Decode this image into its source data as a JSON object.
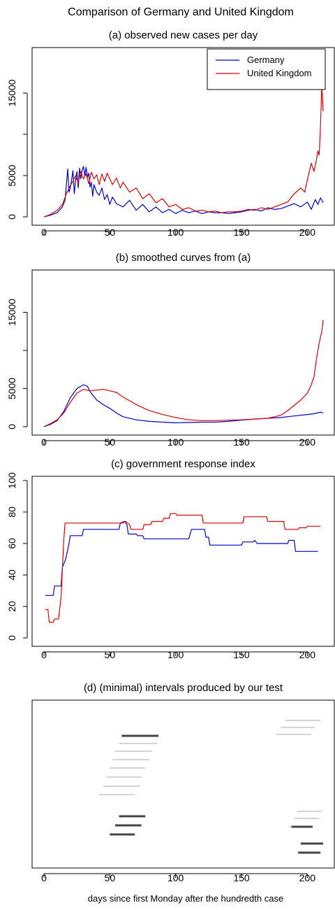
{
  "figure": {
    "title": "Comparison of Germany and United Kingdom",
    "xlabel": "days since first Monday after the hundredth case"
  },
  "chart_data": [
    {
      "type": "line",
      "title": "(a) observed new cases per day",
      "xlim": [
        0,
        212
      ],
      "ylim": [
        0,
        20000
      ],
      "x_ticks": [
        0,
        50,
        100,
        150,
        200
      ],
      "y_ticks": [
        0,
        5000,
        15000
      ],
      "legend": {
        "position": "top-right",
        "entries": [
          "Germany",
          "United Kingdom"
        ]
      },
      "series": [
        {
          "name": "Germany",
          "color": "#0000cc",
          "x": [
            0,
            5,
            10,
            14,
            16,
            18,
            19,
            20,
            21,
            22,
            23,
            24,
            25,
            26,
            27,
            28,
            29,
            30,
            31,
            32,
            33,
            34,
            35,
            36,
            37,
            38,
            40,
            42,
            44,
            46,
            48,
            50,
            52,
            55,
            60,
            65,
            70,
            75,
            80,
            85,
            90,
            95,
            100,
            105,
            110,
            115,
            120,
            125,
            130,
            135,
            140,
            145,
            150,
            155,
            160,
            165,
            170,
            175,
            180,
            185,
            190,
            195,
            200,
            203,
            206,
            208,
            210,
            212
          ],
          "y": [
            0,
            200,
            500,
            1200,
            2000,
            5800,
            3000,
            3500,
            4500,
            5600,
            2800,
            4400,
            5500,
            3500,
            5900,
            4600,
            5700,
            6100,
            5000,
            6000,
            4800,
            5300,
            3600,
            4200,
            2500,
            3900,
            3000,
            2600,
            3500,
            2100,
            2700,
            1500,
            2400,
            1600,
            1200,
            2000,
            800,
            1500,
            600,
            1200,
            500,
            900,
            400,
            800,
            500,
            700,
            400,
            600,
            500,
            500,
            400,
            500,
            600,
            800,
            900,
            700,
            1100,
            900,
            1000,
            1300,
            1600,
            1200,
            1800,
            900,
            2100,
            1500,
            2300,
            1700
          ]
        },
        {
          "name": "United Kingdom",
          "color": "#dd0000",
          "x": [
            0,
            5,
            10,
            14,
            17,
            20,
            22,
            24,
            26,
            28,
            30,
            32,
            34,
            36,
            38,
            40,
            42,
            44,
            46,
            48,
            50,
            52,
            55,
            58,
            60,
            65,
            70,
            75,
            80,
            85,
            90,
            95,
            100,
            105,
            110,
            115,
            120,
            125,
            130,
            135,
            140,
            145,
            150,
            155,
            160,
            165,
            170,
            175,
            180,
            185,
            190,
            195,
            198,
            200,
            203,
            205,
            207,
            208,
            209,
            210,
            211,
            212
          ],
          "y": [
            0,
            300,
            800,
            1500,
            2800,
            3800,
            4300,
            5000,
            4100,
            5500,
            4600,
            5200,
            4000,
            5400,
            4600,
            5100,
            3900,
            5200,
            4300,
            5300,
            4600,
            3900,
            4700,
            3500,
            4200,
            3000,
            3500,
            2200,
            2800,
            1700,
            2200,
            1200,
            1500,
            900,
            1100,
            700,
            800,
            600,
            700,
            500,
            600,
            600,
            700,
            900,
            800,
            1100,
            900,
            1200,
            1500,
            1800,
            2800,
            3500,
            3000,
            4500,
            6500,
            5500,
            7000,
            8000,
            7500,
            11000,
            16000,
            12800
          ]
        }
      ]
    },
    {
      "type": "line",
      "title": "(b) smoothed curves from (a)",
      "xlim": [
        0,
        212
      ],
      "ylim": [
        0,
        20000
      ],
      "x_ticks": [
        0,
        50,
        100,
        150,
        200
      ],
      "y_ticks": [
        0,
        5000,
        15000
      ],
      "series": [
        {
          "name": "Germany",
          "color": "#0000cc",
          "x": [
            0,
            5,
            10,
            15,
            20,
            25,
            30,
            33,
            35,
            40,
            45,
            50,
            55,
            60,
            70,
            80,
            90,
            100,
            110,
            120,
            130,
            140,
            150,
            160,
            170,
            180,
            190,
            200,
            205,
            210,
            212
          ],
          "y": [
            0,
            300,
            800,
            2000,
            3800,
            5000,
            5500,
            5300,
            4600,
            3500,
            2900,
            2400,
            1800,
            1300,
            900,
            700,
            600,
            500,
            550,
            600,
            600,
            700,
            850,
            1000,
            1100,
            1200,
            1400,
            1600,
            1700,
            1900,
            1800
          ]
        },
        {
          "name": "United Kingdom",
          "color": "#dd0000",
          "x": [
            0,
            5,
            10,
            15,
            20,
            25,
            30,
            35,
            40,
            45,
            50,
            55,
            60,
            70,
            80,
            90,
            100,
            110,
            120,
            130,
            140,
            150,
            160,
            170,
            180,
            185,
            190,
            195,
            200,
            203,
            205,
            207,
            209,
            211,
            212
          ],
          "y": [
            0,
            400,
            900,
            1800,
            3200,
            4400,
            4900,
            4700,
            4800,
            4900,
            4700,
            4500,
            3900,
            2900,
            2100,
            1600,
            1200,
            900,
            800,
            800,
            850,
            900,
            1000,
            1100,
            1500,
            2100,
            2800,
            3500,
            4400,
            5500,
            6500,
            9000,
            11000,
            12500,
            14000
          ]
        }
      ]
    },
    {
      "type": "line",
      "title": "(c) government response index",
      "xlim": [
        0,
        212
      ],
      "ylim": [
        0,
        100
      ],
      "x_ticks": [
        0,
        50,
        100,
        150,
        200
      ],
      "y_ticks": [
        0,
        20,
        40,
        60,
        80,
        100
      ],
      "series": [
        {
          "name": "Germany",
          "color": "#0000cc",
          "x": [
            1,
            7,
            8,
            13,
            14,
            16,
            17,
            19,
            20,
            29,
            30,
            57,
            58,
            61,
            63,
            64,
            70,
            71,
            75,
            76,
            110,
            111,
            112,
            122,
            123,
            125,
            126,
            150,
            151,
            159,
            160,
            161,
            162,
            185,
            186,
            190,
            191,
            208
          ],
          "y": [
            27,
            27,
            33,
            33,
            45,
            49,
            52,
            60,
            65,
            65,
            69,
            69,
            73,
            74,
            72,
            66,
            66,
            65,
            65,
            63,
            63,
            66,
            69,
            69,
            64,
            64,
            59,
            59,
            61,
            61,
            62,
            61,
            60,
            60,
            62,
            62,
            55,
            55
          ]
        },
        {
          "name": "United Kingdom",
          "color": "#dd0000",
          "x": [
            1,
            3,
            4,
            7,
            8,
            11,
            13,
            15,
            16,
            60,
            61,
            62,
            65,
            66,
            75,
            76,
            81,
            82,
            90,
            91,
            95,
            96,
            100,
            101,
            120,
            121,
            140,
            141,
            151,
            152,
            169,
            170,
            182,
            183,
            193,
            194,
            199,
            200,
            210
          ],
          "y": [
            18,
            18,
            10,
            10,
            12,
            12,
            26,
            62,
            73,
            73,
            74,
            74,
            72,
            69,
            69,
            72,
            72,
            74,
            74,
            76,
            76,
            79,
            79,
            78,
            78,
            73,
            73,
            73,
            73,
            77,
            77,
            74,
            74,
            69,
            69,
            70,
            70,
            71,
            71
          ]
        }
      ]
    },
    {
      "type": "interval",
      "title": "(d) (minimal) intervals produced by our test",
      "xlim": [
        0,
        212
      ],
      "x_ticks": [
        0,
        50,
        100,
        150,
        200
      ],
      "xlabel": "days since first Monday after the hundredth case",
      "interval_groups": [
        {
          "level": "upper",
          "intervals": [
            [
              59,
              87
            ],
            [
              57,
              86
            ],
            [
              54,
              82
            ],
            [
              52,
              80
            ],
            [
              50,
              77
            ],
            [
              48,
              74
            ],
            [
              45,
              73
            ],
            [
              42,
              69
            ],
            [
              183,
              210
            ],
            [
              180,
              206
            ],
            [
              176,
              203
            ],
            [
              192,
              211
            ],
            [
              190,
              209
            ],
            [
              186,
              204
            ],
            [
              200,
              212
            ],
            [
              198,
              210
            ]
          ]
        },
        {
          "level": "lower",
          "intervals": [
            [
              57,
              77
            ],
            [
              54,
              74
            ],
            [
              50,
              69
            ],
            [
              188,
              204
            ],
            [
              195,
              212
            ],
            [
              193,
              210
            ]
          ]
        }
      ]
    }
  ]
}
